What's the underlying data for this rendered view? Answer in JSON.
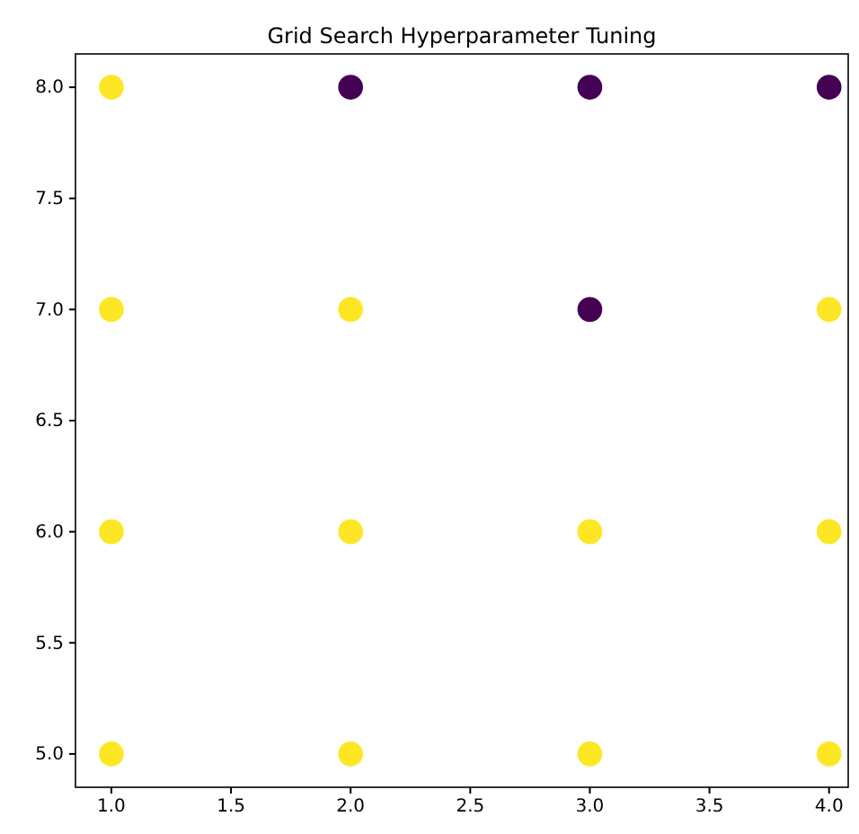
{
  "chart_data": {
    "type": "scatter",
    "title": "Grid Search Hyperparameter Tuning",
    "series": [
      {
        "color": "#fde725",
        "x": [
          1,
          1,
          1,
          1,
          2,
          2,
          2,
          3,
          3,
          4,
          4,
          4
        ],
        "values": [
          8,
          7,
          6,
          5,
          7,
          6,
          5,
          6,
          5,
          7,
          6,
          5
        ]
      },
      {
        "color": "#440154",
        "x": [
          2,
          3,
          4,
          3
        ],
        "values": [
          8,
          8,
          8,
          7
        ]
      }
    ],
    "xlim": [
      0.85,
      4.08
    ],
    "ylim": [
      4.85,
      8.15
    ],
    "xticks": [
      {
        "value": 1,
        "label": "1.0"
      },
      {
        "value": 1.5,
        "label": "1.5"
      },
      {
        "value": 2,
        "label": "2.0"
      },
      {
        "value": 2.5,
        "label": "2.5"
      },
      {
        "value": 3,
        "label": "3.0"
      },
      {
        "value": 3.5,
        "label": "3.5"
      },
      {
        "value": 4,
        "label": "4.0"
      }
    ],
    "yticks": [
      {
        "value": 5,
        "label": "5.0"
      },
      {
        "value": 5.5,
        "label": "5.5"
      },
      {
        "value": 6,
        "label": "6.0"
      },
      {
        "value": 6.5,
        "label": "6.5"
      },
      {
        "value": 7,
        "label": "7.0"
      },
      {
        "value": 7.5,
        "label": "7.5"
      },
      {
        "value": 8,
        "label": "8.0"
      }
    ],
    "marker": "circle",
    "grid": false
  }
}
